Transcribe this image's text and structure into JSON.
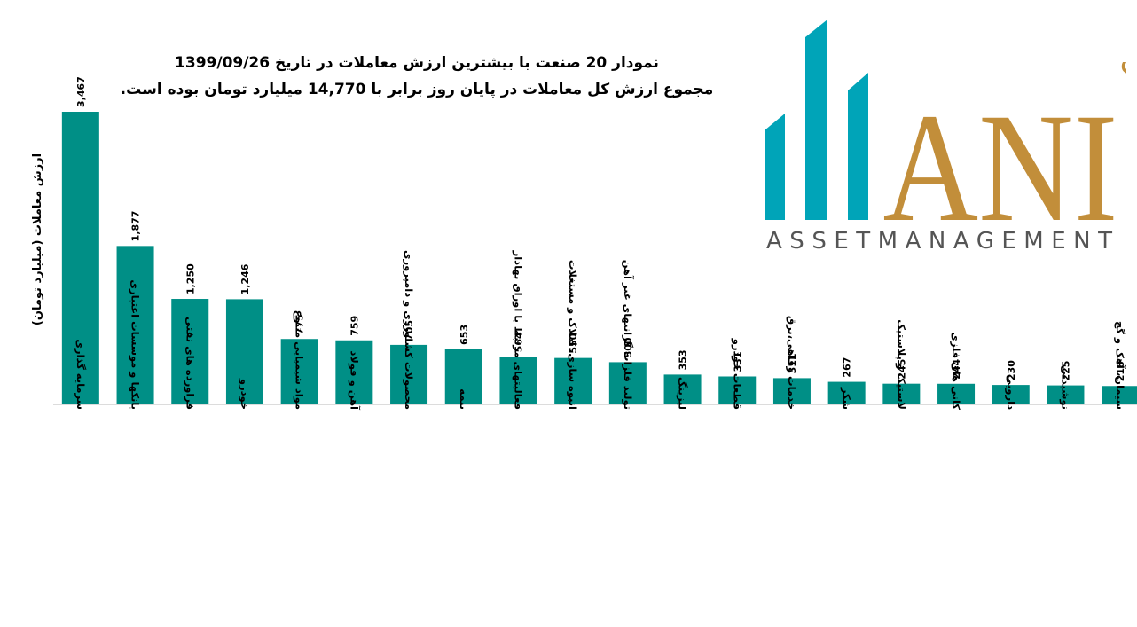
{
  "title_line1": "نمودار  20 صنعت با بیشترین ارزش معاملات در تاریخ 1399/09/26",
  "title_line2": "مجموع ارزش  کل معاملات در پایان روز برابر با 14,770 میلیارد تومان بوده است.",
  "logo": {
    "persian_text": "سبدگردان مانی",
    "big_text": "ANI",
    "sub_text": "ASSETMANAGEMENT",
    "teal": "#00A4B8",
    "gold": "#C28E3A"
  },
  "chart_data": {
    "type": "bar",
    "ylabel": "ارزش معاملات (میلیارد تومان)",
    "bar_color": "#008F86",
    "grid": false,
    "categories": [
      "سرمایه گذاری",
      "بانکها و موسسات اعتباری",
      "فراورده های نفتی",
      "خودرو",
      "مواد شیمیایی متنوع",
      "آهن و فولاد",
      "محصولات کشاورزی و دامپروری",
      "بیمه",
      "فعالیتهای مرتبط با اوراق بهادار",
      "انبوه سازی، املاک و مستغلات",
      "تولید فلزات گرانبهای غیر آهن",
      "لیزینگ",
      "قطعات خودرو",
      "خدمات رفاهی،برق",
      "شکر",
      "لاستیک و پلاستیک",
      "کانی های فلزی",
      "دارویی",
      "نوشیدنی",
      "سیمان، آهک و گچ"
    ],
    "values": [
      3467,
      1877,
      1250,
      1246,
      775,
      759,
      705,
      653,
      564,
      550,
      500,
      353,
      331,
      311,
      267,
      245,
      244,
      230,
      225,
      218
    ],
    "value_labels": [
      "3,467",
      "1,877",
      "1,250",
      "1,246",
      "775",
      "759",
      "705",
      "653",
      "564",
      "550",
      "500",
      "353",
      "331",
      "311",
      "267",
      "245",
      "244",
      "230",
      "225",
      "218"
    ]
  }
}
